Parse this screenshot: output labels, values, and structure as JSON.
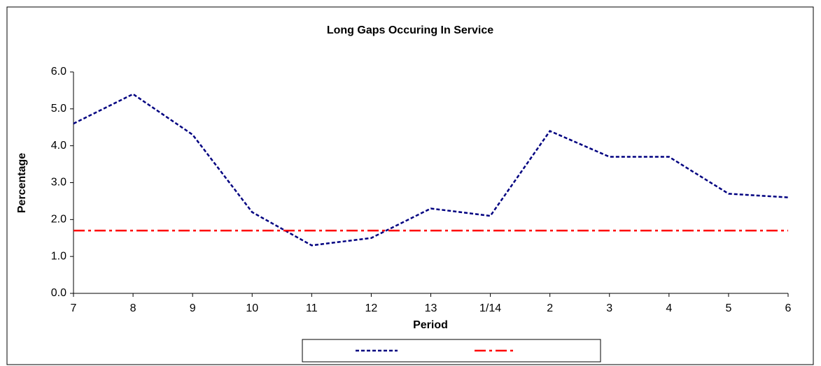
{
  "chart_data": {
    "type": "line",
    "title": "Long Gaps Occuring In Service",
    "x_label": "Period",
    "y_label": "Percentage",
    "categories": [
      "7",
      "8",
      "9",
      "10",
      "11",
      "12",
      "13",
      "1/14",
      "2",
      "3",
      "4",
      "5",
      "6"
    ],
    "series": [
      {
        "color": "#000080",
        "style": "dashed",
        "values": [
          4.6,
          5.4,
          4.3,
          2.2,
          1.3,
          1.5,
          2.3,
          2.1,
          4.4,
          3.7,
          3.7,
          2.7,
          2.6
        ]
      },
      {
        "color": "#ff0000",
        "style": "dash-dot",
        "values": [
          1.7,
          1.7,
          1.7,
          1.7,
          1.7,
          1.7,
          1.7,
          1.7,
          1.7,
          1.7,
          1.7,
          1.7,
          1.7
        ]
      }
    ],
    "ylim": [
      0,
      6
    ],
    "yticks": [
      {
        "value": 0,
        "label": "0.0"
      },
      {
        "value": 1,
        "label": "1.0"
      },
      {
        "value": 2,
        "label": "2.0"
      },
      {
        "value": 3,
        "label": "3.0"
      },
      {
        "value": 4,
        "label": "4.0"
      },
      {
        "value": 5,
        "label": "5.0"
      },
      {
        "value": 6,
        "label": "6.0"
      }
    ],
    "grid": false
  }
}
